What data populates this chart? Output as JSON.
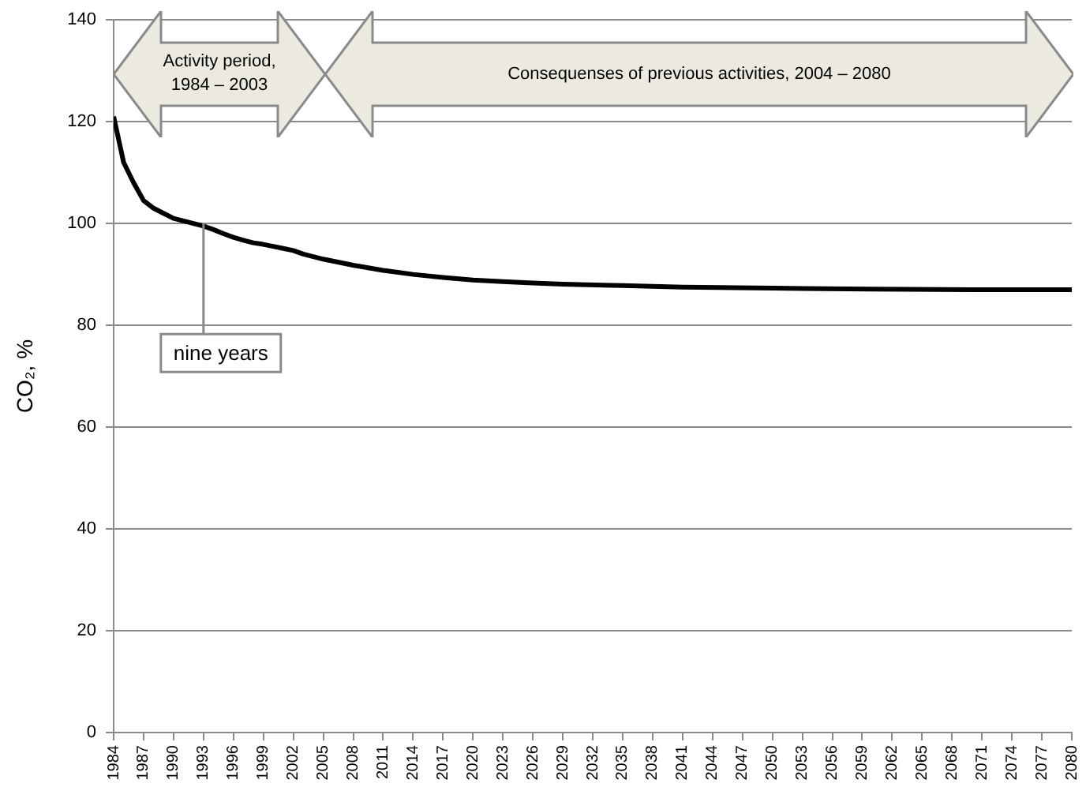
{
  "chart_data": {
    "type": "line",
    "ylabel": "CO₂, %",
    "x": [
      1984,
      1985,
      1986,
      1987,
      1988,
      1989,
      1990,
      1991,
      1992,
      1993,
      1994,
      1995,
      1996,
      1997,
      1998,
      1999,
      2000,
      2001,
      2002,
      2003,
      2005,
      2008,
      2011,
      2014,
      2017,
      2020,
      2023,
      2026,
      2029,
      2035,
      2041,
      2050,
      2060,
      2070,
      2080
    ],
    "series": [
      {
        "color": "#000000",
        "values": [
          121,
          112,
          108,
          104.5,
          103,
          102,
          101,
          100.5,
          100,
          99.5,
          98.8,
          98,
          97.3,
          96.7,
          96.2,
          95.9,
          95.5,
          95.1,
          94.7,
          94,
          93,
          91.8,
          90.8,
          90,
          89.4,
          88.9,
          88.6,
          88.3,
          88.1,
          87.8,
          87.5,
          87.3,
          87.1,
          87,
          87
        ]
      }
    ],
    "xlim": [
      1984,
      2080
    ],
    "xticks": [
      1984,
      1987,
      1990,
      1993,
      1996,
      1999,
      2002,
      2005,
      2008,
      2011,
      2014,
      2017,
      2020,
      2023,
      2026,
      2029,
      2032,
      2035,
      2038,
      2041,
      2044,
      2047,
      2050,
      2053,
      2056,
      2059,
      2062,
      2065,
      2068,
      2071,
      2074,
      2077,
      2080
    ],
    "ylim": [
      0,
      140
    ],
    "yticks": [
      0,
      20,
      40,
      60,
      80,
      100,
      120,
      140
    ],
    "grid": "y",
    "legend": false,
    "marker": "none",
    "line_style": "solid",
    "annotations": [
      "Activity period, 1984 – 2003",
      "Consequenses of previous activities, 2004 – 2080",
      {
        "text": "nine years",
        "x": 1993,
        "y": 100
      }
    ]
  }
}
